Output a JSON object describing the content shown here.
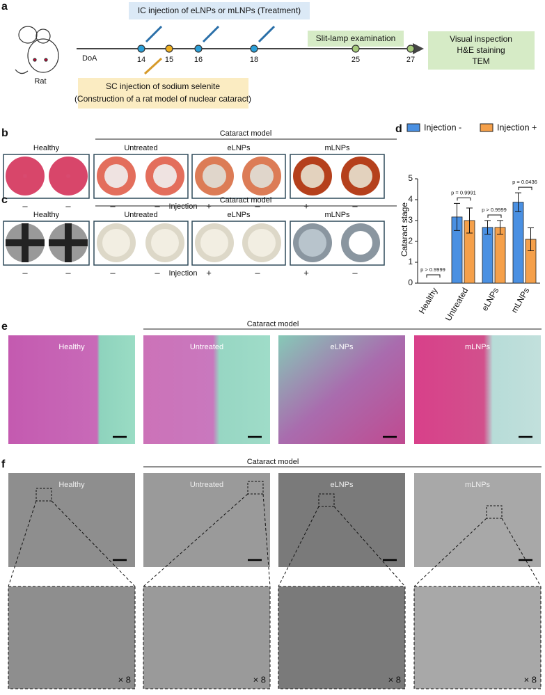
{
  "panel_a": {
    "label": "a",
    "treatment_box": "IC injection of eLNPs or mLNPs (Treatment)",
    "model_box": [
      "SC injection of sodium selenite",
      "(Construction of a rat model of nuclear cataract)"
    ],
    "slit_lamp": "Slit-lamp examination",
    "endpoints": [
      "Visual inspection",
      "H&E staining",
      "TEM"
    ],
    "animal": "Rat",
    "axis_label": "DoA",
    "days": [
      "14",
      "15",
      "16",
      "18",
      "25",
      "27"
    ]
  },
  "panel_b": {
    "label": "b",
    "group_header": "Cataract model",
    "groups": [
      "Healthy",
      "Untreated",
      "eLNPs",
      "mLNPs"
    ],
    "injection_label": "Injection",
    "injection": [
      "–",
      "–",
      "–",
      "–",
      "+",
      "–",
      "+",
      "–"
    ]
  },
  "panel_c": {
    "label": "c",
    "group_header": "Cataract model",
    "groups": [
      "Healthy",
      "Untreated",
      "eLNPs",
      "mLNPs"
    ],
    "injection_label": "Injection",
    "injection": [
      "–",
      "–",
      "–",
      "–",
      "+",
      "–",
      "+",
      "–"
    ]
  },
  "chart_data": {
    "type": "bar",
    "panel_label": "d",
    "ylabel": "Cataract stage",
    "categories": [
      "Healthy",
      "Untreated",
      "eLNPs",
      "mLNPs"
    ],
    "series": [
      {
        "name": "Injection -",
        "color": "#4a90e2",
        "values": [
          0,
          3.17,
          2.67,
          3.88
        ],
        "errors": [
          0,
          0.65,
          0.33,
          0.45
        ]
      },
      {
        "name": "Injection +",
        "color": "#f5a04a",
        "values": [
          0,
          3.0,
          2.67,
          2.1
        ],
        "errors": [
          0,
          0.6,
          0.33,
          0.55
        ]
      }
    ],
    "ylim": [
      0,
      5
    ],
    "yticks": [
      0,
      1,
      2,
      3,
      4,
      5
    ],
    "annotations": [
      "p > 0.9999",
      "p = 0.9991",
      "p > 0.9999",
      "p = 0.0436"
    ],
    "legend": "top"
  },
  "panel_e": {
    "label": "e",
    "group_header": "Cataract model",
    "groups": [
      "Healthy",
      "Untreated",
      "eLNPs",
      "mLNPs"
    ]
  },
  "panel_f": {
    "label": "f",
    "group_header": "Cataract model",
    "groups": [
      "Healthy",
      "Untreated",
      "eLNPs",
      "mLNPs"
    ],
    "magnification": [
      "× 8",
      "× 8",
      "× 8",
      "× 8"
    ]
  }
}
